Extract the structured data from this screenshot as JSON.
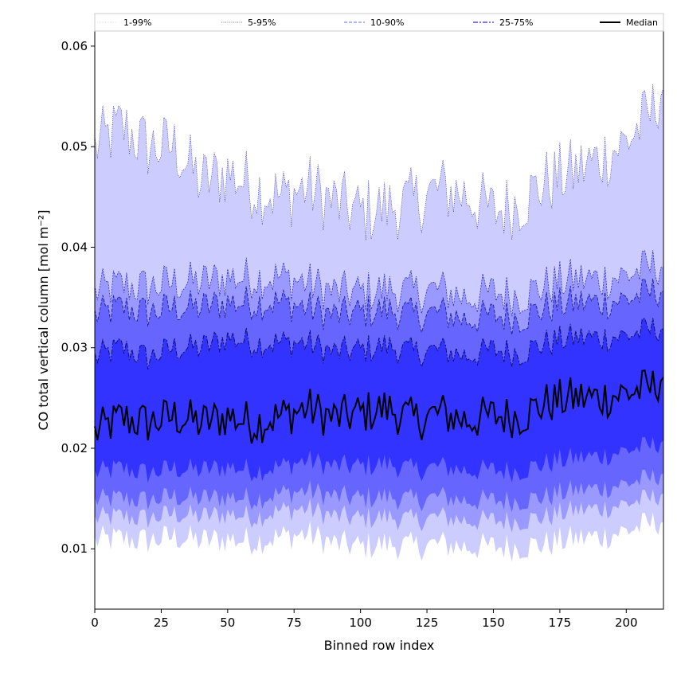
{
  "chart_data": {
    "type": "area",
    "title": "",
    "xlabel": "Binned row index",
    "ylabel": "CO total vertical column [mol m⁻²]",
    "xlim": [
      0,
      214
    ],
    "ylim": [
      0.004,
      0.0615
    ],
    "xticks": [
      0,
      25,
      50,
      75,
      100,
      125,
      150,
      175,
      200
    ],
    "xtick_labels": [
      "0",
      "25",
      "50",
      "75",
      "100",
      "125",
      "150",
      "175",
      "200"
    ],
    "yticks": [
      0.01,
      0.02,
      0.03,
      0.04,
      0.05,
      0.06
    ],
    "ytick_labels": [
      "0.01",
      "0.02",
      "0.03",
      "0.04",
      "0.05",
      "0.06"
    ],
    "grid": false,
    "legend_position": "top",
    "legend": [
      {
        "label": "1-99%",
        "color": "#c8c8fa",
        "style": "thin"
      },
      {
        "label": "5-95%",
        "color": "#3a3ad0",
        "style": "dotted"
      },
      {
        "label": "10-90%",
        "color": "#6a6af0",
        "style": "dashed"
      },
      {
        "label": "25-75%",
        "color": "#2a2ad8",
        "style": "dashdot"
      },
      {
        "label": "Median",
        "color": "#000000",
        "style": "solid"
      }
    ],
    "colors": {
      "band_1_99": "#ccccff",
      "band_5_95": "#9999ff",
      "band_10_90": "#6666ff",
      "band_25_75": "#3333ff",
      "median": "#000000"
    },
    "x_anchors": [
      0,
      10,
      20,
      30,
      40,
      50,
      60,
      70,
      80,
      90,
      100,
      110,
      120,
      130,
      140,
      150,
      160,
      170,
      180,
      190,
      200,
      210,
      214
    ],
    "series": [
      {
        "name": "Median",
        "values": [
          0.0215,
          0.023,
          0.0225,
          0.0232,
          0.0225,
          0.0232,
          0.0225,
          0.0232,
          0.024,
          0.023,
          0.0235,
          0.024,
          0.0228,
          0.0235,
          0.0228,
          0.0232,
          0.0232,
          0.0245,
          0.025,
          0.025,
          0.0255,
          0.026,
          0.0275
        ]
      },
      {
        "name": "25-75%",
        "lower": [
          0.0175,
          0.018,
          0.0175,
          0.018,
          0.0178,
          0.0182,
          0.0178,
          0.0182,
          0.0188,
          0.0182,
          0.0182,
          0.0185,
          0.0178,
          0.0182,
          0.0178,
          0.0178,
          0.0178,
          0.0185,
          0.019,
          0.0192,
          0.0198,
          0.0202,
          0.021
        ],
        "upper": [
          0.029,
          0.03,
          0.029,
          0.03,
          0.03,
          0.031,
          0.0305,
          0.0305,
          0.0305,
          0.0295,
          0.0298,
          0.0302,
          0.0295,
          0.0298,
          0.0292,
          0.0298,
          0.0295,
          0.0305,
          0.031,
          0.031,
          0.0312,
          0.0318,
          0.0322
        ]
      },
      {
        "name": "10-90%",
        "lower": [
          0.0148,
          0.015,
          0.0148,
          0.0152,
          0.015,
          0.0152,
          0.015,
          0.0155,
          0.0158,
          0.0152,
          0.015,
          0.0152,
          0.0148,
          0.0152,
          0.0148,
          0.0148,
          0.0148,
          0.0152,
          0.0158,
          0.016,
          0.0165,
          0.017,
          0.0178
        ],
        "upper": [
          0.0332,
          0.034,
          0.0335,
          0.034,
          0.034,
          0.0345,
          0.0345,
          0.0345,
          0.034,
          0.0332,
          0.0335,
          0.0338,
          0.0332,
          0.0335,
          0.0328,
          0.0332,
          0.033,
          0.034,
          0.0345,
          0.0345,
          0.0348,
          0.0355,
          0.036
        ]
      },
      {
        "name": "5-95%",
        "lower": [
          0.013,
          0.0132,
          0.013,
          0.0135,
          0.0132,
          0.0135,
          0.0132,
          0.0138,
          0.014,
          0.0132,
          0.013,
          0.0132,
          0.0128,
          0.0132,
          0.0128,
          0.0128,
          0.0128,
          0.0132,
          0.0138,
          0.014,
          0.0145,
          0.015,
          0.0158
        ],
        "upper": [
          0.0355,
          0.0362,
          0.036,
          0.0365,
          0.0365,
          0.037,
          0.037,
          0.037,
          0.0365,
          0.0355,
          0.0355,
          0.0358,
          0.0355,
          0.0358,
          0.035,
          0.0355,
          0.0352,
          0.0362,
          0.0368,
          0.0368,
          0.0372,
          0.038,
          0.0385
        ]
      },
      {
        "name": "1-99%",
        "lower": [
          0.0108,
          0.011,
          0.0108,
          0.0112,
          0.0108,
          0.011,
          0.0108,
          0.0112,
          0.0115,
          0.0105,
          0.0102,
          0.0105,
          0.0102,
          0.0105,
          0.0102,
          0.0102,
          0.0102,
          0.0105,
          0.011,
          0.0112,
          0.0118,
          0.0125,
          0.013
        ],
        "upper": [
          0.05,
          0.052,
          0.05,
          0.05,
          0.0465,
          0.0475,
          0.046,
          0.045,
          0.046,
          0.0445,
          0.0435,
          0.044,
          0.0445,
          0.0458,
          0.0452,
          0.0435,
          0.0445,
          0.0465,
          0.0475,
          0.0488,
          0.0505,
          0.0535,
          0.0565
        ]
      }
    ]
  }
}
